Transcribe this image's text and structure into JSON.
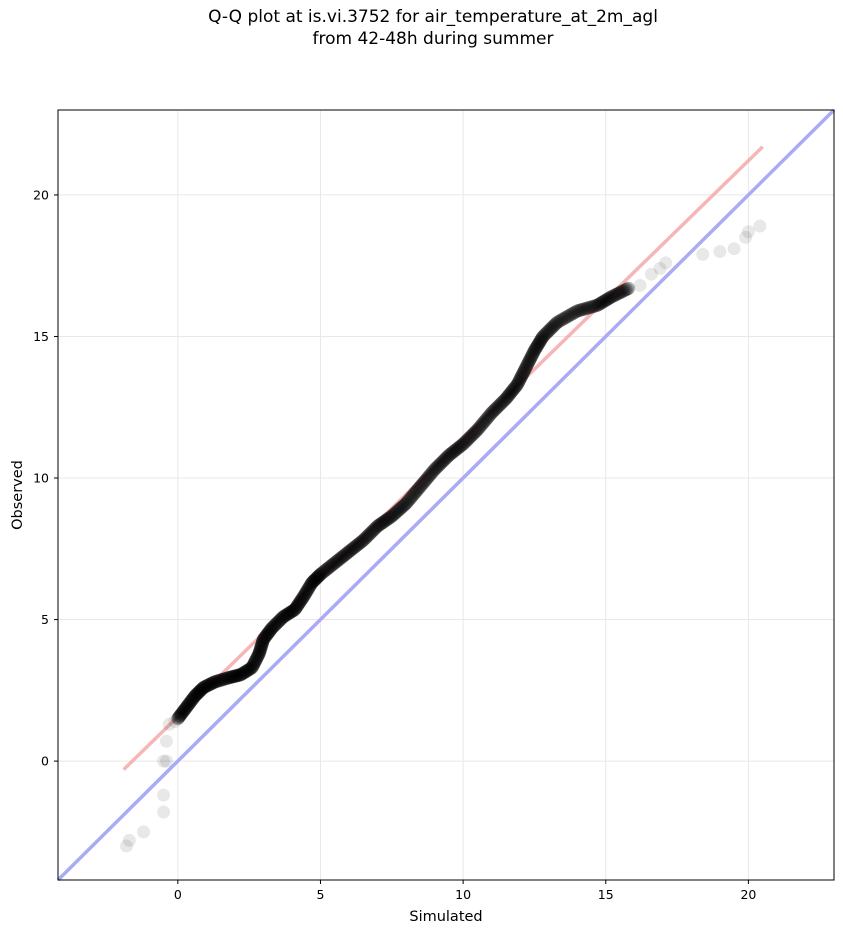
{
  "chart_data": {
    "type": "scatter",
    "title_line1": "Q-Q plot at is.vi.3752 for air_temperature_at_2m_agl",
    "title_line2": "from 42-48h during summer",
    "xlabel": "Simulated",
    "ylabel": "Observed",
    "xlim": [
      -4.2,
      23.0
    ],
    "ylim": [
      -4.2,
      23.0
    ],
    "xticks": [
      0,
      5,
      10,
      15,
      20
    ],
    "yticks": [
      0,
      5,
      10,
      15,
      20
    ],
    "xtick_labels": [
      "0",
      "5",
      "10",
      "15",
      "20"
    ],
    "ytick_labels": [
      "0",
      "5",
      "10",
      "15",
      "20"
    ],
    "grid": true,
    "reference_line": {
      "color": "#aaaaf5",
      "from": [
        -4.2,
        -4.2
      ],
      "to": [
        23.0,
        23.0
      ]
    },
    "fit_line": {
      "color": "#f5a9a9",
      "from": [
        -1.9,
        -0.3
      ],
      "to": [
        20.5,
        21.7
      ]
    },
    "point_color": "#000000",
    "outliers": [
      {
        "x": -1.8,
        "y": -3.0
      },
      {
        "x": -1.7,
        "y": -2.8
      },
      {
        "x": -1.2,
        "y": -2.5
      },
      {
        "x": -0.5,
        "y": -1.8
      },
      {
        "x": -0.5,
        "y": -1.2
      },
      {
        "x": -0.5,
        "y": 0.0
      },
      {
        "x": -0.4,
        "y": 0.0
      },
      {
        "x": -0.4,
        "y": 0.7
      },
      {
        "x": -0.3,
        "y": 1.3
      },
      {
        "x": -0.1,
        "y": 1.4
      },
      {
        "x": 16.2,
        "y": 16.8
      },
      {
        "x": 16.6,
        "y": 17.2
      },
      {
        "x": 16.9,
        "y": 17.4
      },
      {
        "x": 17.1,
        "y": 17.6
      },
      {
        "x": 18.4,
        "y": 17.9
      },
      {
        "x": 19.0,
        "y": 18.0
      },
      {
        "x": 19.5,
        "y": 18.1
      },
      {
        "x": 19.9,
        "y": 18.5
      },
      {
        "x": 20.0,
        "y": 18.7
      },
      {
        "x": 20.4,
        "y": 18.9
      }
    ],
    "quantile_curve": [
      {
        "x": 0.0,
        "y": 1.5
      },
      {
        "x": 0.3,
        "y": 1.9
      },
      {
        "x": 0.6,
        "y": 2.3
      },
      {
        "x": 0.9,
        "y": 2.6
      },
      {
        "x": 1.3,
        "y": 2.8
      },
      {
        "x": 1.8,
        "y": 2.95
      },
      {
        "x": 2.2,
        "y": 3.05
      },
      {
        "x": 2.6,
        "y": 3.3
      },
      {
        "x": 2.85,
        "y": 3.8
      },
      {
        "x": 3.0,
        "y": 4.3
      },
      {
        "x": 3.3,
        "y": 4.7
      },
      {
        "x": 3.7,
        "y": 5.1
      },
      {
        "x": 4.1,
        "y": 5.35
      },
      {
        "x": 4.4,
        "y": 5.8
      },
      {
        "x": 4.7,
        "y": 6.3
      },
      {
        "x": 5.0,
        "y": 6.6
      },
      {
        "x": 5.5,
        "y": 7.0
      },
      {
        "x": 6.0,
        "y": 7.4
      },
      {
        "x": 6.5,
        "y": 7.8
      },
      {
        "x": 7.0,
        "y": 8.3
      },
      {
        "x": 7.5,
        "y": 8.65
      },
      {
        "x": 8.0,
        "y": 9.1
      },
      {
        "x": 8.5,
        "y": 9.7
      },
      {
        "x": 9.0,
        "y": 10.3
      },
      {
        "x": 9.5,
        "y": 10.8
      },
      {
        "x": 10.0,
        "y": 11.2
      },
      {
        "x": 10.5,
        "y": 11.7
      },
      {
        "x": 11.0,
        "y": 12.3
      },
      {
        "x": 11.5,
        "y": 12.8
      },
      {
        "x": 11.9,
        "y": 13.3
      },
      {
        "x": 12.2,
        "y": 13.9
      },
      {
        "x": 12.5,
        "y": 14.5
      },
      {
        "x": 12.8,
        "y": 15.0
      },
      {
        "x": 13.3,
        "y": 15.5
      },
      {
        "x": 14.0,
        "y": 15.9
      },
      {
        "x": 14.7,
        "y": 16.1
      },
      {
        "x": 15.2,
        "y": 16.4
      },
      {
        "x": 15.8,
        "y": 16.7
      }
    ]
  }
}
